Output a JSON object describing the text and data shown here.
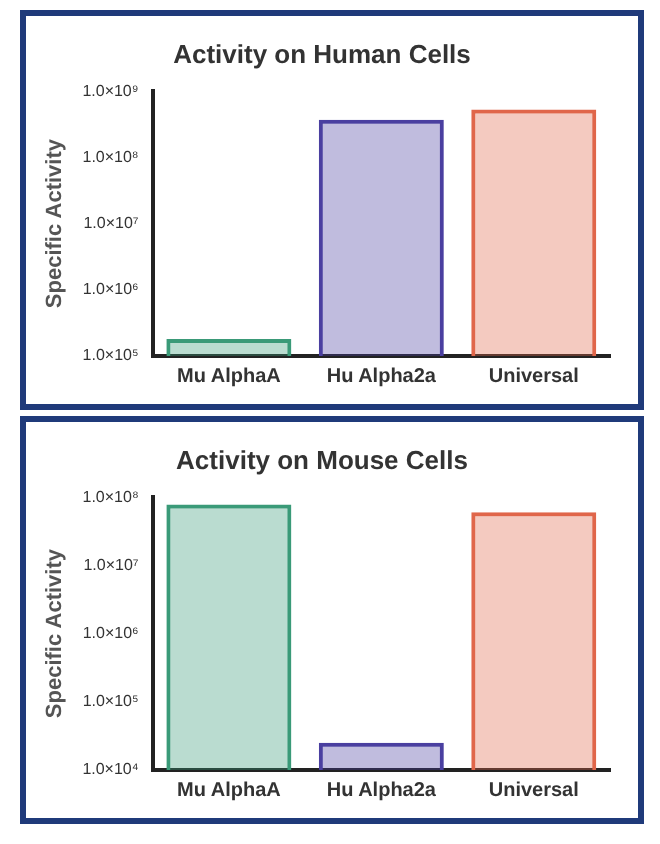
{
  "chart_data": [
    {
      "type": "bar",
      "title": "Activity on Human Cells",
      "ylabel": "Specific Activity",
      "categories": [
        "Mu AlphaA",
        "Hu Alpha2a",
        "Universal"
      ],
      "values": [
        180000,
        370000000,
        530000000
      ],
      "colors": [
        "#3a9a78",
        "#4a3fa0",
        "#e0664a"
      ],
      "log": true,
      "ylim": [
        100000,
        1000000000
      ],
      "yticks": [
        {
          "value": 100000,
          "label": "1.0×10⁵"
        },
        {
          "value": 1000000,
          "label": "1.0×10⁶"
        },
        {
          "value": 10000000,
          "label": "1.0×10⁷"
        },
        {
          "value": 100000000,
          "label": "1.0×10⁸"
        },
        {
          "value": 1000000000,
          "label": "1.0×10⁹"
        }
      ],
      "grid": false,
      "legend": false
    },
    {
      "type": "bar",
      "title": "Activity on Mouse Cells",
      "ylabel": "Specific Activity",
      "categories": [
        "Mu AlphaA",
        "Hu Alpha2a",
        "Universal"
      ],
      "values": [
        78000000,
        25000,
        60000000
      ],
      "colors": [
        "#3a9a78",
        "#4a3fa0",
        "#e0664a"
      ],
      "log": true,
      "ylim": [
        10000,
        100000000
      ],
      "yticks": [
        {
          "value": 10000,
          "label": "1.0×10⁴"
        },
        {
          "value": 100000,
          "label": "1.0×10⁵"
        },
        {
          "value": 1000000,
          "label": "1.0×10⁶"
        },
        {
          "value": 10000000,
          "label": "1.0×10⁷"
        },
        {
          "value": 100000000,
          "label": "1.0×10⁸"
        }
      ],
      "grid": false,
      "legend": false
    }
  ]
}
